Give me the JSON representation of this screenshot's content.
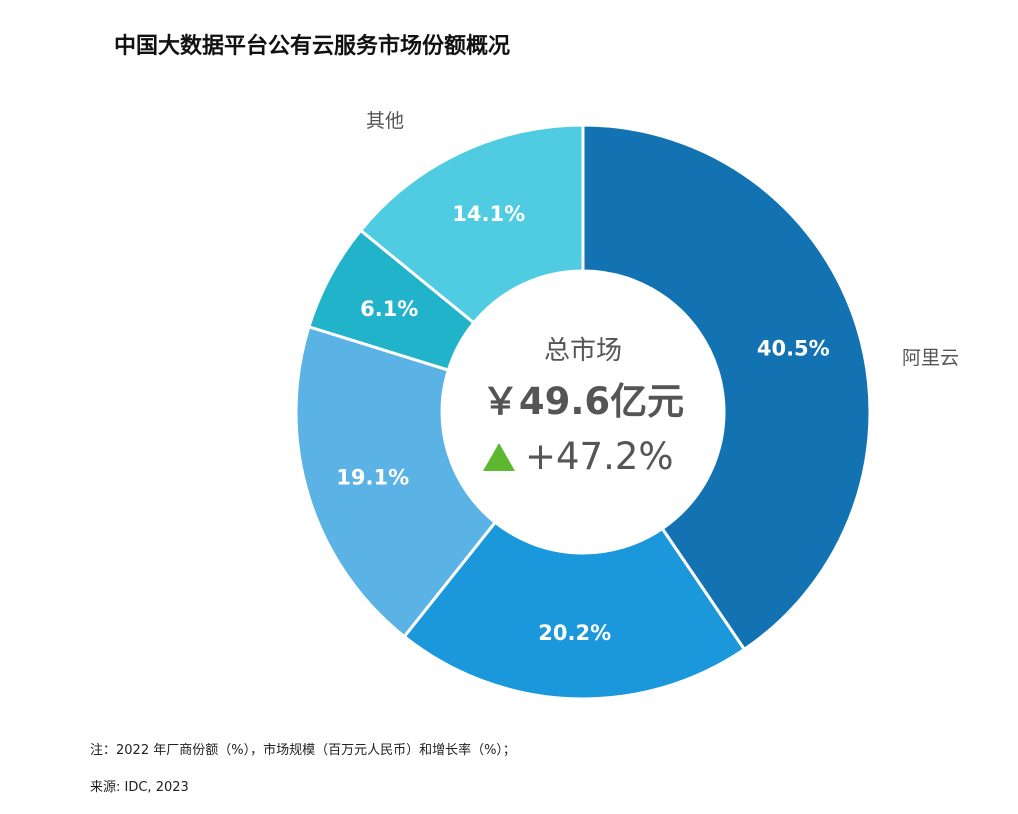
{
  "chart_data": {
    "type": "pie",
    "title": "中国大数据平台公有云服务市场份额概况",
    "slices": [
      {
        "label": "阿里云",
        "value": 40.5,
        "display": "40.5%",
        "color": "#1373b2"
      },
      {
        "label": "",
        "value": 20.2,
        "display": "20.2%",
        "color": "#1b98db"
      },
      {
        "label": "",
        "value": 19.1,
        "display": "19.1%",
        "color": "#5bb2e5"
      },
      {
        "label": "",
        "value": 6.1,
        "display": "6.1%",
        "color": "#21b3c9"
      },
      {
        "label": "其他",
        "value": 14.1,
        "display": "14.1%",
        "color": "#4fcce2"
      }
    ],
    "center": {
      "caption": "总市场",
      "total": "￥49.6亿元",
      "growth": "+47.2%",
      "growth_icon": "triangle-up-icon",
      "growth_color": "#5db830"
    }
  },
  "notes": {
    "note": "注：2022 年厂商份额（%），市场规模（百万元人民币）和增长率（%）；",
    "source": "来源: IDC, 2023"
  }
}
